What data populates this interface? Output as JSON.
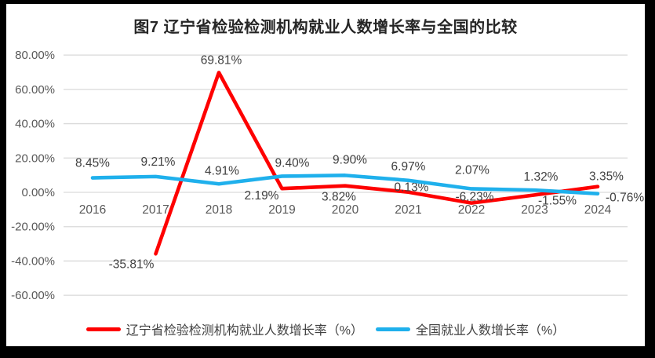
{
  "chart": {
    "title": "图7  辽宁省检验检测机构就业人数增长率与全国的比较"
  },
  "chart_data": {
    "type": "line",
    "title": "图7  辽宁省检验检测机构就业人数增长率与全国的比较",
    "categories": [
      "2016",
      "2017",
      "2018",
      "2019",
      "2020",
      "2021",
      "2022",
      "2023",
      "2024"
    ],
    "series": [
      {
        "name": "辽宁省检验检测机构就业人数增长率（%）",
        "color": "#FE0000",
        "values": [
          null,
          -35.81,
          69.81,
          2.19,
          3.82,
          0.13,
          -6.23,
          -1.55,
          3.35
        ]
      },
      {
        "name": "全国就业人数增长率（%）",
        "color": "#1FB0EC",
        "values": [
          8.45,
          9.21,
          4.91,
          9.4,
          9.9,
          6.97,
          2.07,
          1.32,
          -0.76
        ]
      }
    ],
    "xlabel": "",
    "ylabel": "",
    "ylim": [
      -60,
      80
    ],
    "y_ticks": [
      {
        "value": 80,
        "label": "80.00%"
      },
      {
        "value": 60,
        "label": "60.00%"
      },
      {
        "value": 40,
        "label": "40.00%"
      },
      {
        "value": 20,
        "label": "20.00%"
      },
      {
        "value": 0,
        "label": "0.00%"
      },
      {
        "value": -20,
        "label": "-20.00%"
      },
      {
        "value": -40,
        "label": "-40.00%"
      },
      {
        "value": -60,
        "label": "-60.00%"
      }
    ],
    "grid": true,
    "data_labels": true,
    "label_format": "0.00%",
    "legend_position": "bottom"
  },
  "colors": {
    "frame": "#000000",
    "background": "#FFFFFF",
    "grid": "#D9D9D9",
    "axis_text": "#595959",
    "label_text": "#404040",
    "title_text": "#262626"
  }
}
